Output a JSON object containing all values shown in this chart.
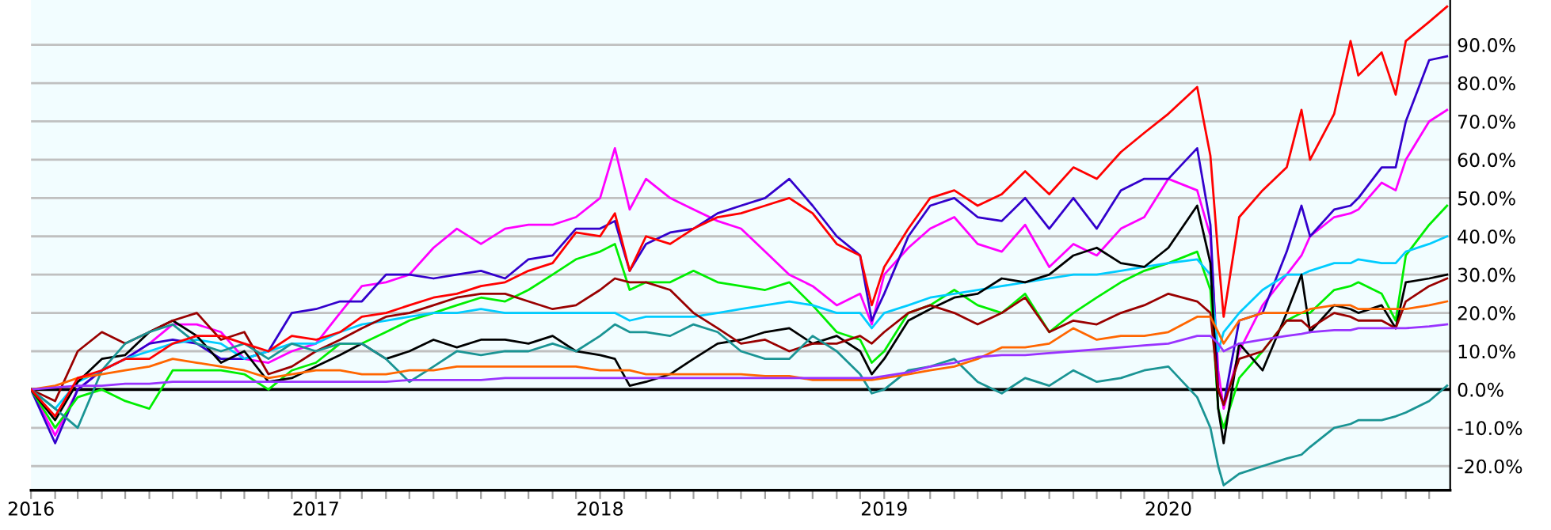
{
  "chart_data": {
    "type": "line",
    "x": [
      "2016-01-01",
      "2016-02-01",
      "2016-03-01",
      "2016-04-01",
      "2016-05-01",
      "2016-06-01",
      "2016-07-01",
      "2016-08-01",
      "2016-09-01",
      "2016-10-01",
      "2016-11-01",
      "2016-12-01",
      "2017-01-01",
      "2017-02-01",
      "2017-03-01",
      "2017-04-01",
      "2017-05-01",
      "2017-06-01",
      "2017-07-01",
      "2017-08-01",
      "2017-09-01",
      "2017-10-01",
      "2017-11-01",
      "2017-12-01",
      "2018-01-01",
      "2018-01-20",
      "2018-02-08",
      "2018-03-01",
      "2018-04-01",
      "2018-05-01",
      "2018-06-01",
      "2018-07-01",
      "2018-08-01",
      "2018-09-01",
      "2018-10-01",
      "2018-11-01",
      "2018-12-01",
      "2018-12-16",
      "2019-01-01",
      "2019-02-01",
      "2019-03-01",
      "2019-04-01",
      "2019-05-01",
      "2019-06-01",
      "2019-07-01",
      "2019-08-01",
      "2019-09-01",
      "2019-10-01",
      "2019-11-01",
      "2019-12-01",
      "2020-01-01",
      "2020-02-07",
      "2020-02-24",
      "2020-03-05",
      "2020-03-12",
      "2020-04-01",
      "2020-05-01",
      "2020-06-01",
      "2020-06-20",
      "2020-07-01",
      "2020-08-01",
      "2020-08-22",
      "2020-09-01",
      "2020-10-01",
      "2020-10-19",
      "2020-11-01",
      "2020-12-01",
      "2020-12-24"
    ],
    "series": [
      {
        "color": "#ff00ff",
        "values": [
          0,
          -12,
          0,
          5,
          8,
          12,
          17,
          17,
          15,
          8,
          7,
          10,
          12,
          20,
          27,
          28,
          30,
          37,
          42,
          38,
          42,
          43,
          43,
          45,
          50,
          63,
          47,
          55,
          50,
          47,
          44,
          42,
          36,
          30,
          27,
          22,
          25,
          17,
          30,
          37,
          42,
          45,
          38,
          36,
          43,
          32,
          38,
          35,
          42,
          45,
          55,
          52,
          40,
          5,
          -5,
          10,
          22,
          30,
          35,
          40,
          45,
          46,
          47,
          54,
          52,
          60,
          70,
          73
        ]
      },
      {
        "color": "#3300cc",
        "values": [
          0,
          -14,
          0,
          5,
          8,
          12,
          13,
          12,
          8,
          8,
          10,
          20,
          21,
          23,
          23,
          30,
          30,
          29,
          30,
          31,
          29,
          34,
          35,
          42,
          42,
          44,
          31,
          38,
          41,
          42,
          46,
          48,
          50,
          55,
          48,
          40,
          35,
          18,
          25,
          40,
          48,
          50,
          45,
          44,
          50,
          42,
          50,
          42,
          52,
          55,
          55,
          63,
          43,
          0,
          -4,
          18,
          20,
          36,
          48,
          40,
          47,
          48,
          50,
          58,
          58,
          70,
          86,
          87
        ]
      },
      {
        "color": "#00ee00",
        "values": [
          0,
          -10,
          -2,
          0,
          -3,
          -5,
          5,
          5,
          5,
          4,
          0,
          5,
          7,
          12,
          12,
          15,
          18,
          20,
          22,
          24,
          23,
          26,
          30,
          34,
          36,
          38,
          26,
          28,
          28,
          31,
          28,
          27,
          26,
          28,
          22,
          15,
          13,
          7,
          10,
          20,
          22,
          26,
          22,
          20,
          25,
          15,
          20,
          24,
          28,
          31,
          33,
          36,
          26,
          -5,
          -10,
          3,
          10,
          18,
          20,
          20,
          26,
          27,
          28,
          25,
          18,
          35,
          43,
          48
        ]
      },
      {
        "color": "#00ccff",
        "values": [
          0,
          -5,
          2,
          5,
          8,
          10,
          12,
          13,
          12,
          8,
          10,
          12,
          12,
          15,
          17,
          18,
          19,
          20,
          20,
          21,
          20,
          20,
          20,
          20,
          20,
          20,
          18,
          19,
          19,
          19,
          20,
          21,
          22,
          23,
          22,
          20,
          20,
          16,
          20,
          22,
          24,
          25,
          26,
          27,
          28,
          29,
          30,
          30,
          31,
          32,
          33,
          34,
          30,
          10,
          15,
          20,
          26,
          30,
          30,
          31,
          33,
          33,
          34,
          33,
          33,
          36,
          38,
          40
        ]
      },
      {
        "color": "#000000",
        "values": [
          0,
          -8,
          2,
          8,
          9,
          15,
          18,
          14,
          7,
          10,
          2,
          3,
          6,
          9,
          12,
          8,
          10,
          13,
          11,
          13,
          13,
          12,
          14,
          10,
          9,
          8,
          1,
          2,
          4,
          8,
          12,
          13,
          15,
          16,
          12,
          14,
          10,
          4,
          8,
          18,
          21,
          24,
          25,
          29,
          28,
          30,
          35,
          37,
          33,
          32,
          37,
          48,
          33,
          -5,
          -14,
          12,
          5,
          20,
          30,
          15,
          22,
          21,
          20,
          22,
          16,
          28,
          29,
          30
        ]
      },
      {
        "color": "#990000",
        "values": [
          0,
          -3,
          10,
          15,
          12,
          15,
          18,
          20,
          13,
          15,
          4,
          6,
          10,
          13,
          16,
          19,
          20,
          22,
          24,
          25,
          25,
          23,
          21,
          22,
          26,
          29,
          28,
          28,
          26,
          20,
          16,
          12,
          13,
          10,
          12,
          12,
          14,
          12,
          15,
          20,
          22,
          20,
          17,
          20,
          24,
          15,
          18,
          17,
          20,
          22,
          25,
          23,
          20,
          0,
          -4,
          8,
          10,
          18,
          18,
          16,
          20,
          19,
          18,
          18,
          16,
          23,
          27,
          29
        ]
      },
      {
        "color": "#1a9494",
        "values": [
          0,
          -5,
          -10,
          5,
          12,
          15,
          17,
          12,
          10,
          12,
          8,
          12,
          10,
          12,
          12,
          8,
          2,
          6,
          10,
          9,
          10,
          10,
          12,
          10,
          14,
          17,
          15,
          15,
          14,
          17,
          15,
          10,
          8,
          8,
          14,
          10,
          4,
          -1,
          0,
          5,
          6,
          8,
          2,
          -1,
          3,
          1,
          5,
          2,
          3,
          5,
          6,
          -2,
          -10,
          -20,
          -25,
          -22,
          -20,
          -18,
          -17,
          -15,
          -10,
          -9,
          -8,
          -8,
          -7,
          -6,
          -3,
          1
        ]
      },
      {
        "color": "#ff6600",
        "values": [
          0,
          1,
          3,
          4,
          5,
          6,
          8,
          7,
          6,
          5,
          3,
          4,
          5,
          5,
          4,
          4,
          5,
          5,
          6,
          6,
          6,
          6,
          6,
          6,
          5,
          5,
          5,
          4,
          4,
          4,
          4,
          4,
          3.5,
          3.5,
          2.5,
          2.5,
          2.5,
          2.5,
          3,
          4,
          5,
          6,
          8,
          11,
          11,
          12,
          16,
          13,
          14,
          14,
          15,
          19,
          19,
          15,
          12,
          18,
          20,
          20,
          20,
          21,
          22,
          22,
          21,
          21,
          21,
          21,
          22,
          23
        ]
      },
      {
        "color": "#9933ff",
        "values": [
          0,
          0.5,
          1,
          1,
          1.5,
          1.5,
          2,
          2,
          2,
          2,
          2,
          2,
          2,
          2,
          2,
          2,
          2.5,
          2.5,
          2.5,
          2.5,
          3,
          3,
          3,
          3,
          3,
          3,
          3,
          3,
          3,
          3,
          3,
          3,
          3,
          3,
          3,
          3,
          3,
          3,
          3.5,
          4.5,
          6,
          7,
          8.5,
          9,
          9,
          9.5,
          10,
          10.5,
          11,
          11.5,
          12,
          14,
          14,
          12,
          10,
          12,
          13,
          14,
          14.5,
          15,
          15.5,
          15.5,
          16,
          16,
          16,
          16,
          16.5,
          17
        ]
      },
      {
        "color": "#ff0000",
        "values": [
          0,
          -7,
          3,
          5,
          8,
          8,
          12,
          14,
          14,
          12,
          10,
          14,
          13,
          15,
          19,
          20,
          22,
          24,
          25,
          27,
          28,
          31,
          33,
          41,
          40,
          46,
          31,
          40,
          38,
          42,
          45,
          46,
          48,
          50,
          46,
          38,
          35,
          22,
          32,
          42,
          50,
          52,
          48,
          51,
          57,
          51,
          58,
          55,
          62,
          67,
          72,
          79,
          61,
          35,
          19,
          45,
          52,
          58,
          73,
          60,
          72,
          91,
          82,
          88,
          77,
          91,
          96,
          100
        ]
      }
    ],
    "xlim": [
      "2016-01-01",
      "2020-12-28"
    ],
    "xticks": [
      {
        "value": "2016-01-01",
        "label": "2016"
      },
      {
        "value": "2016-02-01",
        "label": null
      },
      {
        "value": "2016-03-01",
        "label": null
      },
      {
        "value": "2016-04-01",
        "label": null
      },
      {
        "value": "2016-05-01",
        "label": null
      },
      {
        "value": "2016-06-01",
        "label": null
      },
      {
        "value": "2016-07-01",
        "label": null
      },
      {
        "value": "2016-08-01",
        "label": null
      },
      {
        "value": "2016-09-01",
        "label": null
      },
      {
        "value": "2016-10-01",
        "label": null
      },
      {
        "value": "2016-11-01",
        "label": null
      },
      {
        "value": "2016-12-01",
        "label": null
      },
      {
        "value": "2017-01-01",
        "label": "2017"
      },
      {
        "value": "2017-02-01",
        "label": null
      },
      {
        "value": "2017-03-01",
        "label": null
      },
      {
        "value": "2017-04-01",
        "label": null
      },
      {
        "value": "2017-05-01",
        "label": null
      },
      {
        "value": "2017-06-01",
        "label": null
      },
      {
        "value": "2017-07-01",
        "label": null
      },
      {
        "value": "2017-08-01",
        "label": null
      },
      {
        "value": "2017-09-01",
        "label": null
      },
      {
        "value": "2017-10-01",
        "label": null
      },
      {
        "value": "2017-11-01",
        "label": null
      },
      {
        "value": "2017-12-01",
        "label": null
      },
      {
        "value": "2018-01-01",
        "label": "2018"
      },
      {
        "value": "2018-02-01",
        "label": null
      },
      {
        "value": "2018-03-01",
        "label": null
      },
      {
        "value": "2018-04-01",
        "label": null
      },
      {
        "value": "2018-05-01",
        "label": null
      },
      {
        "value": "2018-06-01",
        "label": null
      },
      {
        "value": "2018-07-01",
        "label": null
      },
      {
        "value": "2018-08-01",
        "label": null
      },
      {
        "value": "2018-09-01",
        "label": null
      },
      {
        "value": "2018-10-01",
        "label": null
      },
      {
        "value": "2018-11-01",
        "label": null
      },
      {
        "value": "2018-12-01",
        "label": null
      },
      {
        "value": "2019-01-01",
        "label": "2019"
      },
      {
        "value": "2019-02-01",
        "label": null
      },
      {
        "value": "2019-03-01",
        "label": null
      },
      {
        "value": "2019-04-01",
        "label": null
      },
      {
        "value": "2019-05-01",
        "label": null
      },
      {
        "value": "2019-06-01",
        "label": null
      },
      {
        "value": "2019-07-01",
        "label": null
      },
      {
        "value": "2019-08-01",
        "label": null
      },
      {
        "value": "2019-09-01",
        "label": null
      },
      {
        "value": "2019-10-01",
        "label": null
      },
      {
        "value": "2019-11-01",
        "label": null
      },
      {
        "value": "2019-12-01",
        "label": null
      },
      {
        "value": "2020-01-01",
        "label": "2020"
      },
      {
        "value": "2020-02-01",
        "label": null
      },
      {
        "value": "2020-03-01",
        "label": null
      },
      {
        "value": "2020-04-01",
        "label": null
      },
      {
        "value": "2020-05-01",
        "label": null
      },
      {
        "value": "2020-06-01",
        "label": null
      },
      {
        "value": "2020-07-01",
        "label": null
      },
      {
        "value": "2020-08-01",
        "label": null
      },
      {
        "value": "2020-09-01",
        "label": null
      },
      {
        "value": "2020-10-01",
        "label": null
      },
      {
        "value": "2020-11-01",
        "label": null
      },
      {
        "value": "2020-12-01",
        "label": null
      }
    ],
    "ylim": [
      -26.3,
      101.7
    ],
    "yticks": [
      {
        "value": -20,
        "label": "-20.0%"
      },
      {
        "value": -10,
        "label": "-10.0%"
      },
      {
        "value": 0,
        "label": "0.0%"
      },
      {
        "value": 10,
        "label": "10.0%"
      },
      {
        "value": 20,
        "label": "20.0%"
      },
      {
        "value": 30,
        "label": "30.0%"
      },
      {
        "value": 40,
        "label": "40.0%"
      },
      {
        "value": 50,
        "label": "50.0%"
      },
      {
        "value": 60,
        "label": "60.0%"
      },
      {
        "value": 70,
        "label": "70.0%"
      },
      {
        "value": 80,
        "label": "80.0%"
      },
      {
        "value": 90,
        "label": "90.0%"
      }
    ],
    "ref_lines": [
      {
        "axis": "y",
        "value": 0,
        "color": "#000000",
        "line_style": "solid"
      }
    ],
    "grid": "y",
    "marker": "none",
    "line_style": "solid"
  }
}
